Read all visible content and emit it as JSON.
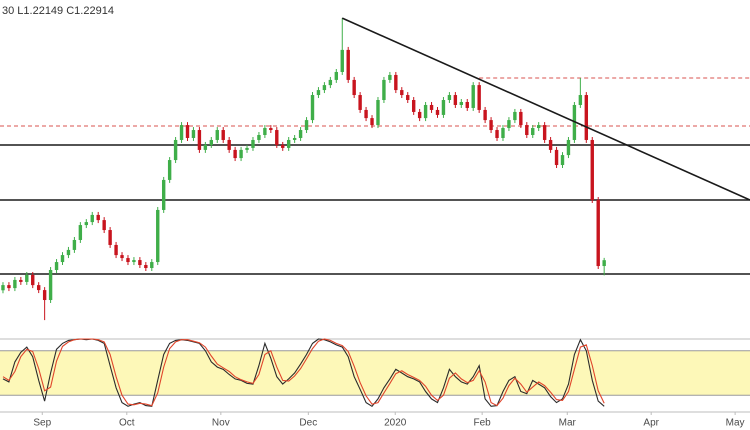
{
  "chart_data": {
    "type": "candlestick",
    "ohlc_label": "30 L1.22149 C1.22914",
    "xlim": [
      -0.5,
      125.5
    ],
    "xticks": [
      {
        "value": 6.6,
        "label": "Sep"
      },
      {
        "value": 20.8,
        "label": "Oct"
      },
      {
        "value": 36.6,
        "label": "Nov"
      },
      {
        "value": 51.3,
        "label": "Dec"
      },
      {
        "value": 65.9,
        "label": "2020"
      },
      {
        "value": 80.5,
        "label": "Feb"
      },
      {
        "value": 94.8,
        "label": "Mar"
      },
      {
        "value": 108.9,
        "label": "Apr"
      },
      {
        "value": 123,
        "label": "May"
      }
    ],
    "ylim": [
      1.19,
      1.36
    ],
    "up_color": "#3fae49",
    "down_color": "#c8141e",
    "open": [
      1.214,
      1.2166,
      1.2151,
      1.2192,
      1.2182,
      1.2217,
      1.2166,
      1.2141,
      1.2091,
      1.2242,
      1.2282,
      1.2317,
      1.2343,
      1.2393,
      1.2468,
      1.2483,
      1.2519,
      1.2493,
      1.2443,
      1.2368,
      1.2317,
      1.2302,
      1.2282,
      1.2292,
      1.2267,
      1.2252,
      1.2282,
      1.2544,
      1.2695,
      1.2795,
      1.2896,
      1.2971,
      1.2906,
      1.2946,
      1.2846,
      1.2871,
      1.2896,
      1.2946,
      1.2896,
      1.2846,
      1.2805,
      1.2846,
      1.2856,
      1.2896,
      1.2921,
      1.2956,
      1.2946,
      1.2871,
      1.2856,
      1.2896,
      1.2906,
      1.2946,
      1.2996,
      1.3122,
      1.3147,
      1.3172,
      1.3198,
      1.3238,
      1.3349,
      1.3198,
      1.3122,
      1.3047,
      1.3006,
      1.2971,
      1.3097,
      1.3198,
      1.3223,
      1.3147,
      1.3122,
      1.3097,
      1.3037,
      1.3006,
      1.3072,
      1.3047,
      1.3022,
      1.3097,
      1.3122,
      1.3072,
      1.3087,
      1.3057,
      1.3172,
      1.3047,
      1.2996,
      1.2946,
      1.2906,
      1.2956,
      1.2996,
      1.3037,
      1.2971,
      1.2921,
      1.2956,
      1.2971,
      1.2896,
      1.2846,
      1.277,
      1.282,
      1.2896,
      1.3072,
      1.3122,
      1.2896,
      1.2594,
      1.2262
    ],
    "high": [
      1.2181,
      1.2181,
      1.2207,
      1.2207,
      1.2232,
      1.2232,
      1.2181,
      1.2156,
      1.2257,
      1.2297,
      1.2332,
      1.2358,
      1.2408,
      1.2483,
      1.2498,
      1.2534,
      1.2534,
      1.2508,
      1.2458,
      1.2383,
      1.2332,
      1.2317,
      1.2307,
      1.2307,
      1.2282,
      1.2297,
      1.2559,
      1.271,
      1.281,
      1.2911,
      1.2986,
      1.2986,
      1.2961,
      1.2961,
      1.2886,
      1.2911,
      1.2961,
      1.2961,
      1.2911,
      1.2861,
      1.2861,
      1.2871,
      1.2911,
      1.2936,
      1.2971,
      1.2971,
      1.2961,
      1.2886,
      1.2911,
      1.2921,
      1.2961,
      1.3011,
      1.3137,
      1.3162,
      1.3187,
      1.3213,
      1.3253,
      1.3509,
      1.3364,
      1.3213,
      1.3137,
      1.3062,
      1.3021,
      1.3112,
      1.3213,
      1.3238,
      1.3238,
      1.3162,
      1.3137,
      1.3112,
      1.3052,
      1.3087,
      1.3087,
      1.3062,
      1.3112,
      1.3137,
      1.3137,
      1.3102,
      1.3102,
      1.3187,
      1.3187,
      1.3062,
      1.3011,
      1.2961,
      1.2971,
      1.3011,
      1.3052,
      1.3052,
      1.2986,
      1.2971,
      1.2986,
      1.2986,
      1.2911,
      1.2861,
      1.2835,
      1.2911,
      1.3087,
      1.3208,
      1.3137,
      1.2911,
      1.2609,
      1.2303
    ],
    "low": [
      1.2125,
      1.2136,
      1.2136,
      1.2167,
      1.2167,
      1.2151,
      1.2126,
      1.199,
      1.2076,
      1.2227,
      1.2267,
      1.2302,
      1.2328,
      1.2378,
      1.2453,
      1.2468,
      1.2478,
      1.2428,
      1.2353,
      1.2302,
      1.2287,
      1.2267,
      1.2267,
      1.2252,
      1.2237,
      1.2237,
      1.2267,
      1.2529,
      1.268,
      1.278,
      1.2881,
      1.2891,
      1.2891,
      1.2831,
      1.2831,
      1.2856,
      1.2881,
      1.2881,
      1.2831,
      1.279,
      1.279,
      1.2831,
      1.2841,
      1.2881,
      1.2906,
      1.2931,
      1.2856,
      1.2841,
      1.2841,
      1.2881,
      1.2891,
      1.2931,
      1.2981,
      1.3107,
      1.3132,
      1.3157,
      1.3183,
      1.3223,
      1.3183,
      1.3107,
      1.3032,
      1.2991,
      1.2956,
      1.2956,
      1.3082,
      1.3183,
      1.3132,
      1.3107,
      1.3082,
      1.3022,
      1.2991,
      1.2991,
      1.3032,
      1.3007,
      1.3007,
      1.3082,
      1.3057,
      1.3057,
      1.3042,
      1.3042,
      1.3032,
      1.2981,
      1.2931,
      1.2891,
      1.2891,
      1.2941,
      1.2981,
      1.2956,
      1.2906,
      1.2906,
      1.2941,
      1.2881,
      1.2831,
      1.2755,
      1.2755,
      1.2805,
      1.2881,
      1.3057,
      1.2881,
      1.2579,
      1.2247,
      1.22149
    ],
    "close": [
      1.2166,
      1.2151,
      1.2192,
      1.2182,
      1.2217,
      1.2166,
      1.2141,
      1.2091,
      1.2242,
      1.2282,
      1.2317,
      1.2343,
      1.2393,
      1.2468,
      1.2483,
      1.2519,
      1.2493,
      1.2443,
      1.2368,
      1.2317,
      1.2302,
      1.2282,
      1.2292,
      1.2267,
      1.2252,
      1.2282,
      1.2544,
      1.2695,
      1.2795,
      1.2896,
      1.2971,
      1.2906,
      1.2946,
      1.2846,
      1.2871,
      1.2896,
      1.2946,
      1.2896,
      1.2846,
      1.2805,
      1.2846,
      1.2856,
      1.2896,
      1.2921,
      1.2956,
      1.2946,
      1.2871,
      1.2856,
      1.2896,
      1.2906,
      1.2946,
      1.2996,
      1.3122,
      1.3147,
      1.3172,
      1.3198,
      1.3238,
      1.3349,
      1.3198,
      1.3122,
      1.3047,
      1.3006,
      1.2971,
      1.3097,
      1.3198,
      1.3223,
      1.3147,
      1.3122,
      1.3097,
      1.3037,
      1.3006,
      1.3072,
      1.3047,
      1.3022,
      1.3097,
      1.3122,
      1.3072,
      1.3087,
      1.3057,
      1.3172,
      1.3047,
      1.2996,
      1.2946,
      1.2906,
      1.2956,
      1.2996,
      1.3037,
      1.2971,
      1.2921,
      1.2956,
      1.2971,
      1.2896,
      1.2846,
      1.277,
      1.282,
      1.2896,
      1.3072,
      1.3122,
      1.2896,
      1.2594,
      1.2262,
      1.22914
    ],
    "levels": [
      {
        "value": 1.2871,
        "color": "#1a1a1a"
      },
      {
        "value": 1.2594,
        "color": "#1a1a1a"
      },
      {
        "value": 1.2222,
        "color": "#1a1a1a"
      }
    ],
    "dashed_levels": [
      {
        "value": 1.3208,
        "from": 80,
        "color": "#d9534f"
      },
      {
        "value": 1.2966,
        "from": -0.5,
        "color": "#d9534f"
      }
    ],
    "trendline": {
      "x": [
        57,
        125.5
      ],
      "y": [
        1.3509,
        1.2594
      ],
      "color": "#1a1a1a"
    },
    "stochastic": {
      "ylim": [
        0,
        100
      ],
      "band": [
        20,
        80
      ],
      "band_color": "#fdf8b8",
      "series": [
        {
          "color": "#2b2b2b",
          "values": [
            42,
            38,
            65,
            78,
            85,
            72,
            40,
            12,
            50,
            82,
            90,
            94,
            95,
            96,
            95,
            96,
            94,
            90,
            60,
            30,
            10,
            5,
            8,
            10,
            6,
            5,
            40,
            75,
            90,
            94,
            95,
            94,
            92,
            90,
            80,
            65,
            58,
            55,
            48,
            42,
            40,
            36,
            35,
            60,
            90,
            70,
            45,
            35,
            42,
            50,
            62,
            75,
            90,
            96,
            95,
            92,
            88,
            85,
            72,
            45,
            28,
            10,
            5,
            15,
            30,
            42,
            55,
            50,
            45,
            42,
            38,
            25,
            15,
            10,
            30,
            55,
            45,
            38,
            35,
            45,
            60,
            15,
            5,
            6,
            25,
            40,
            45,
            25,
            22,
            40,
            35,
            30,
            18,
            10,
            15,
            35,
            75,
            95,
            80,
            40,
            12,
            5
          ]
        },
        {
          "color": "#e0452b",
          "values": [
            45,
            40,
            52,
            72,
            82,
            79,
            56,
            26,
            31,
            66,
            86,
            92,
            95,
            96,
            96,
            96,
            95,
            92,
            75,
            45,
            20,
            8,
            7,
            9,
            8,
            6,
            23,
            58,
            83,
            92,
            95,
            95,
            93,
            91,
            85,
            73,
            62,
            57,
            52,
            45,
            41,
            38,
            36,
            48,
            75,
            80,
            58,
            40,
            39,
            46,
            56,
            69,
            83,
            93,
            96,
            94,
            90,
            87,
            79,
            59,
            37,
            19,
            8,
            10,
            23,
            36,
            49,
            53,
            48,
            44,
            40,
            32,
            20,
            13,
            20,
            43,
            50,
            42,
            37,
            40,
            53,
            38,
            10,
            6,
            16,
            33,
            43,
            35,
            24,
            31,
            38,
            33,
            24,
            14,
            13,
            25,
            55,
            85,
            88,
            60,
            26,
            9
          ]
        }
      ]
    }
  }
}
